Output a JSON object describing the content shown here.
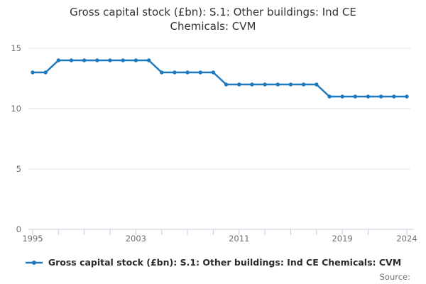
{
  "title": {
    "line1": "Gross capital stock (£bn): S.1: Other buildings: Ind CE",
    "line2": "Chemicals: CVM"
  },
  "legend": {
    "marker_icon": "line-dot-icon",
    "label": "Gross capital stock (£bn): S.1: Other buildings: Ind CE Chemicals: CVM"
  },
  "source_label": "Source:",
  "colors": {
    "series": "#1e78bc",
    "grid": "#e6e6e6",
    "axis": "#c3cdd9",
    "tick_label": "#6e6e6e",
    "title_text": "#333333"
  },
  "chart_data": {
    "type": "line",
    "title": "Gross capital stock (£bn): S.1: Other buildings: Ind CE Chemicals: CVM",
    "xlabel": "",
    "ylabel": "",
    "x": [
      1995,
      1996,
      1997,
      1998,
      1999,
      2000,
      2001,
      2002,
      2003,
      2004,
      2005,
      2006,
      2007,
      2008,
      2009,
      2010,
      2011,
      2012,
      2013,
      2014,
      2015,
      2016,
      2017,
      2018,
      2019,
      2020,
      2021,
      2022,
      2023,
      2024
    ],
    "series": [
      {
        "name": "Gross capital stock (£bn): S.1: Other buildings: Ind CE Chemicals: CVM",
        "values": [
          13,
          13,
          14,
          14,
          14,
          14,
          14,
          14,
          14,
          14,
          13,
          13,
          13,
          13,
          13,
          12,
          12,
          12,
          12,
          12,
          12,
          12,
          12,
          11,
          11,
          11,
          11,
          11,
          11,
          11
        ]
      }
    ],
    "ylim": [
      0,
      15
    ],
    "yticks": [
      0,
      5,
      10,
      15
    ],
    "xticks_labeled": [
      1995,
      2003,
      2011,
      2019,
      2024
    ],
    "xticks_minor": [
      1995,
      1997,
      1999,
      2001,
      2003,
      2005,
      2007,
      2009,
      2011,
      2013,
      2015,
      2017,
      2019,
      2021,
      2024
    ],
    "grid": "horizontal",
    "legend_position": "bottom",
    "marker": "circle"
  }
}
